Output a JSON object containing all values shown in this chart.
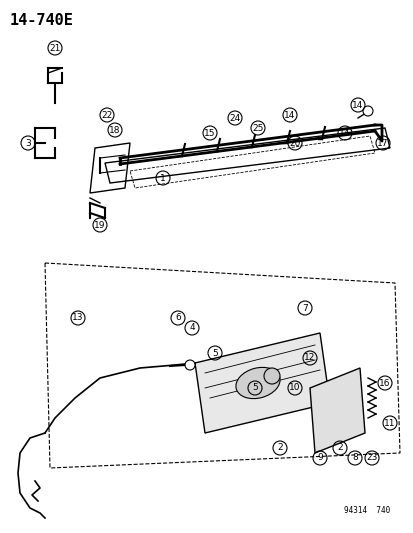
{
  "title": "14-740E",
  "watermark": "94314  740",
  "bg_color": "#ffffff",
  "fig_width": 4.14,
  "fig_height": 5.33,
  "dpi": 100
}
